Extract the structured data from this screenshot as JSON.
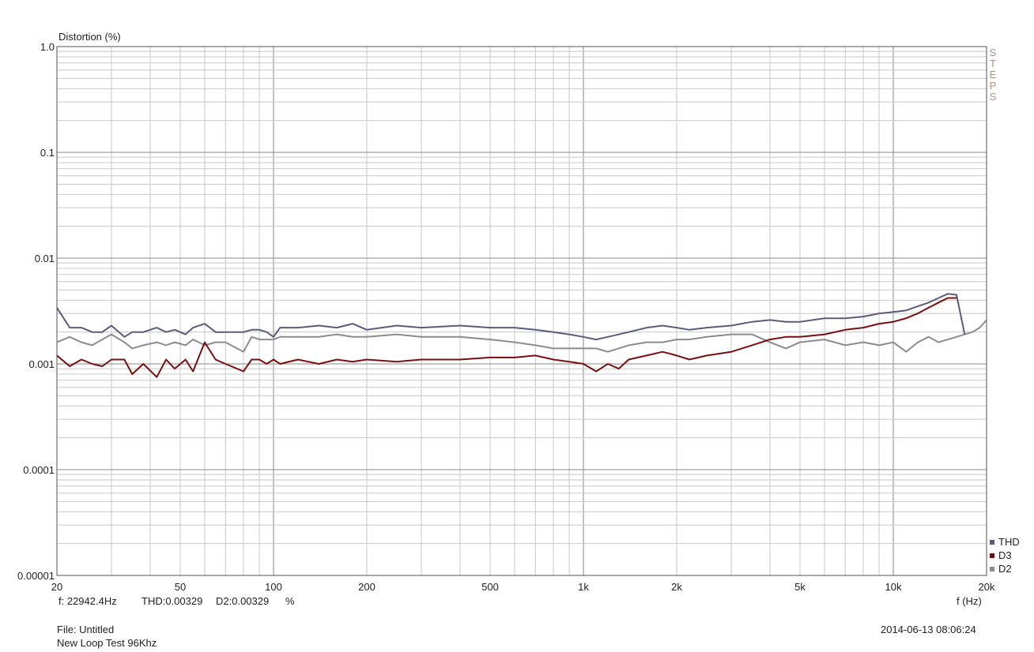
{
  "chart_data": {
    "type": "line",
    "title": "",
    "ylabel": "Distortion (%)",
    "xlabel": "f (Hz)",
    "xscale": "log",
    "yscale": "log",
    "xlim": [
      20,
      20000
    ],
    "ylim": [
      1e-05,
      1.0
    ],
    "grid": true,
    "legend_position": "bottom-right",
    "x_ticks": [
      {
        "v": 20,
        "label": "20"
      },
      {
        "v": 50,
        "label": "50"
      },
      {
        "v": 100,
        "label": "100"
      },
      {
        "v": 200,
        "label": "200"
      },
      {
        "v": 500,
        "label": "500"
      },
      {
        "v": 1000,
        "label": "1k"
      },
      {
        "v": 2000,
        "label": "2k"
      },
      {
        "v": 5000,
        "label": "5k"
      },
      {
        "v": 10000,
        "label": "10k"
      },
      {
        "v": 20000,
        "label": "20k"
      }
    ],
    "y_ticks": [
      {
        "v": 1.0,
        "label": "1.0"
      },
      {
        "v": 0.1,
        "label": "0.1"
      },
      {
        "v": 0.01,
        "label": "0.01"
      },
      {
        "v": 0.001,
        "label": "0.001"
      },
      {
        "v": 0.0001,
        "label": "0.0001"
      },
      {
        "v": 1e-05,
        "label": "0.00001"
      }
    ],
    "series": [
      {
        "name": "THD",
        "color": "#5b5b7c",
        "points": [
          [
            20,
            0.0034
          ],
          [
            22,
            0.0022
          ],
          [
            24,
            0.0022
          ],
          [
            26,
            0.002
          ],
          [
            28,
            0.002
          ],
          [
            30,
            0.0023
          ],
          [
            33,
            0.0018
          ],
          [
            35,
            0.002
          ],
          [
            38,
            0.002
          ],
          [
            42,
            0.0022
          ],
          [
            45,
            0.002
          ],
          [
            48,
            0.0021
          ],
          [
            52,
            0.0019
          ],
          [
            55,
            0.0022
          ],
          [
            60,
            0.0024
          ],
          [
            65,
            0.002
          ],
          [
            70,
            0.002
          ],
          [
            80,
            0.002
          ],
          [
            85,
            0.0021
          ],
          [
            90,
            0.0021
          ],
          [
            95,
            0.002
          ],
          [
            100,
            0.0018
          ],
          [
            105,
            0.0022
          ],
          [
            120,
            0.0022
          ],
          [
            140,
            0.0023
          ],
          [
            160,
            0.0022
          ],
          [
            180,
            0.0024
          ],
          [
            200,
            0.0021
          ],
          [
            250,
            0.0023
          ],
          [
            300,
            0.0022
          ],
          [
            400,
            0.0023
          ],
          [
            500,
            0.0022
          ],
          [
            600,
            0.0022
          ],
          [
            700,
            0.0021
          ],
          [
            800,
            0.002
          ],
          [
            900,
            0.0019
          ],
          [
            1000,
            0.0018
          ],
          [
            1100,
            0.0017
          ],
          [
            1200,
            0.0018
          ],
          [
            1400,
            0.002
          ],
          [
            1600,
            0.0022
          ],
          [
            1800,
            0.0023
          ],
          [
            2000,
            0.0022
          ],
          [
            2200,
            0.0021
          ],
          [
            2500,
            0.0022
          ],
          [
            3000,
            0.0023
          ],
          [
            3500,
            0.0025
          ],
          [
            4000,
            0.0026
          ],
          [
            4500,
            0.0025
          ],
          [
            5000,
            0.0025
          ],
          [
            6000,
            0.0027
          ],
          [
            7000,
            0.0027
          ],
          [
            8000,
            0.0028
          ],
          [
            9000,
            0.003
          ],
          [
            10000,
            0.0031
          ],
          [
            11000,
            0.0032
          ],
          [
            12000,
            0.0035
          ],
          [
            13000,
            0.0038
          ],
          [
            14000,
            0.0042
          ],
          [
            15000,
            0.0046
          ],
          [
            16000,
            0.0045
          ],
          [
            17000,
            0.0019
          ]
        ]
      },
      {
        "name": "D3",
        "color": "#7a0f0f",
        "points": [
          [
            20,
            0.0012
          ],
          [
            22,
            0.00095
          ],
          [
            24,
            0.0011
          ],
          [
            26,
            0.001
          ],
          [
            28,
            0.00095
          ],
          [
            30,
            0.0011
          ],
          [
            33,
            0.0011
          ],
          [
            35,
            0.0008
          ],
          [
            38,
            0.001
          ],
          [
            42,
            0.00075
          ],
          [
            45,
            0.0011
          ],
          [
            48,
            0.0009
          ],
          [
            52,
            0.0011
          ],
          [
            55,
            0.00085
          ],
          [
            60,
            0.0016
          ],
          [
            65,
            0.0011
          ],
          [
            70,
            0.001
          ],
          [
            80,
            0.00085
          ],
          [
            85,
            0.0011
          ],
          [
            90,
            0.0011
          ],
          [
            95,
            0.001
          ],
          [
            100,
            0.0011
          ],
          [
            105,
            0.001
          ],
          [
            120,
            0.0011
          ],
          [
            140,
            0.001
          ],
          [
            160,
            0.0011
          ],
          [
            180,
            0.00105
          ],
          [
            200,
            0.0011
          ],
          [
            250,
            0.00105
          ],
          [
            300,
            0.0011
          ],
          [
            400,
            0.0011
          ],
          [
            500,
            0.00115
          ],
          [
            600,
            0.00115
          ],
          [
            700,
            0.0012
          ],
          [
            800,
            0.0011
          ],
          [
            900,
            0.00105
          ],
          [
            1000,
            0.001
          ],
          [
            1100,
            0.00085
          ],
          [
            1200,
            0.001
          ],
          [
            1300,
            0.0009
          ],
          [
            1400,
            0.0011
          ],
          [
            1600,
            0.0012
          ],
          [
            1800,
            0.0013
          ],
          [
            2000,
            0.0012
          ],
          [
            2200,
            0.0011
          ],
          [
            2500,
            0.0012
          ],
          [
            3000,
            0.0013
          ],
          [
            3500,
            0.0015
          ],
          [
            4000,
            0.0017
          ],
          [
            4500,
            0.0018
          ],
          [
            5000,
            0.0018
          ],
          [
            6000,
            0.0019
          ],
          [
            7000,
            0.0021
          ],
          [
            8000,
            0.0022
          ],
          [
            9000,
            0.0024
          ],
          [
            10000,
            0.0025
          ],
          [
            11000,
            0.0027
          ],
          [
            12000,
            0.003
          ],
          [
            13000,
            0.0034
          ],
          [
            14000,
            0.0038
          ],
          [
            15000,
            0.0042
          ],
          [
            16000,
            0.0042
          ]
        ]
      },
      {
        "name": "D2",
        "color": "#8c8c8c",
        "points": [
          [
            20,
            0.0016
          ],
          [
            22,
            0.0018
          ],
          [
            24,
            0.0016
          ],
          [
            26,
            0.0015
          ],
          [
            28,
            0.0017
          ],
          [
            30,
            0.0019
          ],
          [
            33,
            0.0016
          ],
          [
            35,
            0.0014
          ],
          [
            38,
            0.0015
          ],
          [
            42,
            0.0016
          ],
          [
            45,
            0.0015
          ],
          [
            48,
            0.0016
          ],
          [
            52,
            0.0015
          ],
          [
            55,
            0.0017
          ],
          [
            60,
            0.0015
          ],
          [
            65,
            0.0016
          ],
          [
            70,
            0.0016
          ],
          [
            80,
            0.0013
          ],
          [
            85,
            0.0018
          ],
          [
            90,
            0.0017
          ],
          [
            95,
            0.0017
          ],
          [
            100,
            0.0017
          ],
          [
            105,
            0.0018
          ],
          [
            120,
            0.0018
          ],
          [
            140,
            0.0018
          ],
          [
            160,
            0.0019
          ],
          [
            180,
            0.0018
          ],
          [
            200,
            0.0018
          ],
          [
            250,
            0.0019
          ],
          [
            300,
            0.0018
          ],
          [
            400,
            0.0018
          ],
          [
            500,
            0.0017
          ],
          [
            600,
            0.0016
          ],
          [
            700,
            0.0015
          ],
          [
            800,
            0.0014
          ],
          [
            900,
            0.0014
          ],
          [
            1000,
            0.0014
          ],
          [
            1100,
            0.0014
          ],
          [
            1200,
            0.0013
          ],
          [
            1400,
            0.0015
          ],
          [
            1600,
            0.0016
          ],
          [
            1800,
            0.0016
          ],
          [
            2000,
            0.0017
          ],
          [
            2200,
            0.0017
          ],
          [
            2500,
            0.0018
          ],
          [
            3000,
            0.0019
          ],
          [
            3500,
            0.0019
          ],
          [
            4000,
            0.0016
          ],
          [
            4500,
            0.0014
          ],
          [
            5000,
            0.0016
          ],
          [
            6000,
            0.0017
          ],
          [
            7000,
            0.0015
          ],
          [
            8000,
            0.0016
          ],
          [
            9000,
            0.0015
          ],
          [
            10000,
            0.0016
          ],
          [
            11000,
            0.0013
          ],
          [
            12000,
            0.0016
          ],
          [
            13000,
            0.0018
          ],
          [
            14000,
            0.0016
          ],
          [
            15000,
            0.0017
          ],
          [
            16000,
            0.0018
          ],
          [
            17000,
            0.0019
          ],
          [
            18000,
            0.002
          ],
          [
            19000,
            0.0022
          ],
          [
            20000,
            0.0026
          ]
        ]
      }
    ]
  },
  "labels": {
    "ylabel": "Distortion (%)",
    "xlabel": "f (Hz)",
    "steps_vertical": "STEPS",
    "readout_freq": "f:  22942.4Hz",
    "readout_thd": "THD:0.00329",
    "readout_d2": "D2:0.00329",
    "readout_unit": "%",
    "file_line": "File: Untitled",
    "test_line": "New Loop Test 96Khz",
    "timestamp": "2014-06-13 08:06:24"
  },
  "legend": [
    {
      "name": "THD",
      "color": "#5b5b7c"
    },
    {
      "name": "D3",
      "color": "#7a0f0f"
    },
    {
      "name": "D2",
      "color": "#8c8c8c"
    }
  ]
}
